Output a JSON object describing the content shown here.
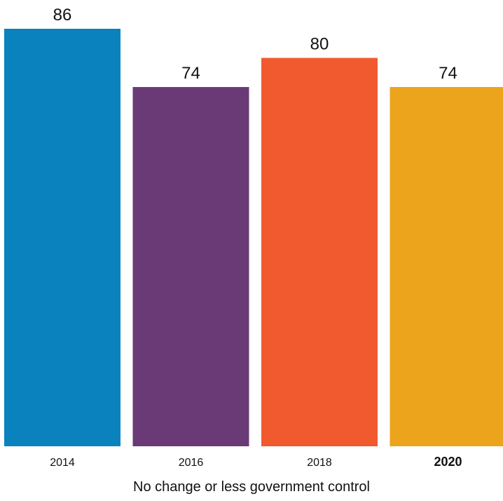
{
  "chart_data": {
    "type": "bar",
    "categories": [
      "2014",
      "2016",
      "2018",
      "2020"
    ],
    "values": [
      86,
      74,
      80,
      74
    ],
    "highlighted_category": "2020",
    "colors": [
      "#0A82BE",
      "#6A3A77",
      "#F05A2E",
      "#EBA41C"
    ],
    "xlabel": "No change or less government control",
    "ylim": [
      0,
      86
    ],
    "grid": false,
    "legend": "none"
  }
}
